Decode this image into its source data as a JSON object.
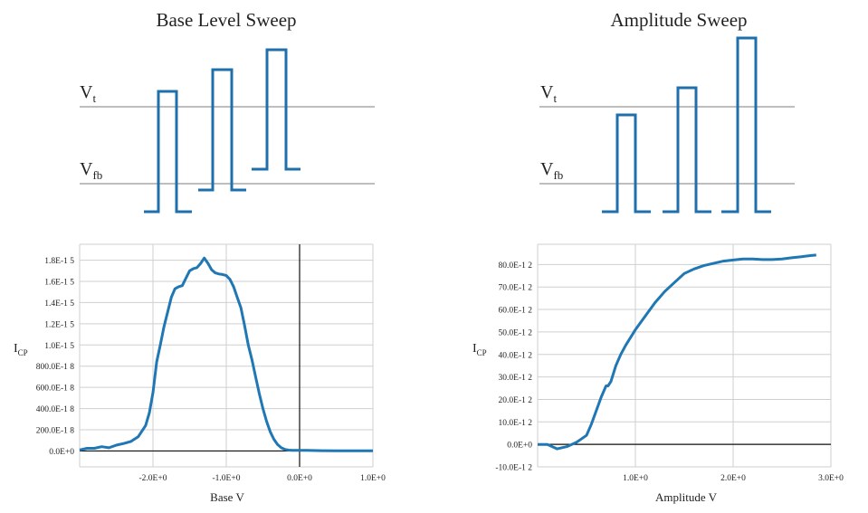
{
  "diagrams": [
    {
      "title": "Base Level Sweep",
      "vt_main": "V",
      "vt_sub": "t",
      "vfb_main": "V",
      "vfb_sub": "fb"
    },
    {
      "title": "Amplitude Sweep",
      "vt_main": "V",
      "vt_sub": "t",
      "vfb_main": "V",
      "vfb_sub": "fb"
    }
  ],
  "chart_data": [
    {
      "type": "line",
      "xlabel": "Base   V",
      "ylabel_main": "I",
      "ylabel_sub": "CP",
      "xlim": [
        -3.0,
        1.0
      ],
      "ylim": [
        -1.5e-16,
        1.95e-15
      ],
      "x_ticks": [
        -2.0,
        -1.0,
        0.0,
        1.0
      ],
      "x_tick_labels": [
        "-2.0E+0",
        "-1.0E+0",
        "0.0E+0",
        "1.0E+0"
      ],
      "y_ticks": [
        0,
        2e-16,
        4e-16,
        6e-16,
        8e-16,
        1e-15,
        1.2e-15,
        1.4e-15,
        1.6e-15,
        1.8e-15
      ],
      "y_tick_labels": [
        "0.0E+0",
        "200.0E-1 8",
        "400.0E-1 8",
        "600.0E-1 8",
        "800.0E-1 8",
        "1.0E-1 5",
        "1.2E-1 5",
        "1.4E-1 5",
        "1.6E-1 5",
        "1.8E-1 5"
      ],
      "grid": true,
      "series": [
        {
          "x": [
            -3.0,
            -2.9,
            -2.8,
            -2.7,
            -2.6,
            -2.5,
            -2.4,
            -2.3,
            -2.2,
            -2.1,
            -2.05,
            -2.0,
            -1.95,
            -1.9,
            -1.85,
            -1.8,
            -1.75,
            -1.7,
            -1.65,
            -1.6,
            -1.55,
            -1.5,
            -1.45,
            -1.4,
            -1.35,
            -1.3,
            -1.25,
            -1.2,
            -1.15,
            -1.1,
            -1.05,
            -1.0,
            -0.95,
            -0.9,
            -0.85,
            -0.8,
            -0.75,
            -0.7,
            -0.65,
            -0.6,
            -0.55,
            -0.5,
            -0.45,
            -0.4,
            -0.35,
            -0.3,
            -0.25,
            -0.2,
            -0.15,
            -0.1,
            -0.05,
            0.0,
            0.1,
            0.3,
            0.5,
            1.0
          ],
          "values": [
            1e-17,
            2.5e-17,
            2.5e-17,
            4e-17,
            3e-17,
            5.5e-17,
            7e-17,
            9e-17,
            1.35e-16,
            2.4e-16,
            3.6e-16,
            5.5e-16,
            8.4e-16,
            1e-15,
            1.17e-15,
            1.31e-15,
            1.45e-15,
            1.53e-15,
            1.55e-15,
            1.56e-15,
            1.63e-15,
            1.7e-15,
            1.72e-15,
            1.73e-15,
            1.77e-15,
            1.82e-15,
            1.77e-15,
            1.71e-15,
            1.68e-15,
            1.67e-15,
            1.665e-15,
            1.655e-15,
            1.62e-15,
            1.55e-15,
            1.45e-15,
            1.35e-15,
            1.18e-15,
            1e-15,
            8.6e-16,
            7e-16,
            5.4e-16,
            4e-16,
            2.8e-16,
            1.8e-16,
            1.1e-16,
            6e-17,
            3e-17,
            1.5e-17,
            8e-18,
            5e-18,
            5e-18,
            5e-18,
            5e-18,
            3e-18,
            2e-18,
            2e-18
          ]
        }
      ]
    },
    {
      "type": "line",
      "xlabel": "Amplitude   V",
      "ylabel_main": "I",
      "ylabel_sub": "CP",
      "xlim": [
        0.0,
        3.0
      ],
      "ylim": [
        -1e-11,
        8.9e-11
      ],
      "x_ticks": [
        1.0,
        2.0,
        3.0
      ],
      "x_tick_labels": [
        "1.0E+0",
        "2.0E+0",
        "3.0E+0"
      ],
      "y_ticks": [
        -1e-11,
        0,
        1e-11,
        2e-11,
        3e-11,
        4e-11,
        5e-11,
        6e-11,
        7e-11,
        8e-11
      ],
      "y_tick_labels": [
        "-10.0E-1 2",
        "0.0E+0",
        "10.0E-1 2",
        "20.0E-1 2",
        "30.0E-1 2",
        "40.0E-1 2",
        "50.0E-1 2",
        "60.0E-1 2",
        "70.0E-1 2",
        "80.0E-1 2"
      ],
      "grid": true,
      "series": [
        {
          "x": [
            0.0,
            0.1,
            0.2,
            0.3,
            0.4,
            0.5,
            0.55,
            0.6,
            0.65,
            0.7,
            0.72,
            0.75,
            0.8,
            0.85,
            0.9,
            1.0,
            1.1,
            1.2,
            1.3,
            1.4,
            1.5,
            1.55,
            1.6,
            1.7,
            1.8,
            1.9,
            2.0,
            2.1,
            2.2,
            2.3,
            2.4,
            2.5,
            2.6,
            2.7,
            2.8,
            2.85
          ],
          "values": [
            0,
            0,
            -2e-12,
            -1e-12,
            1e-12,
            4e-12,
            9e-12,
            1.5e-11,
            2.1e-11,
            2.6e-11,
            2.6e-11,
            2.8e-11,
            3.5e-11,
            4e-11,
            4.4e-11,
            5.1e-11,
            5.7e-11,
            6.3e-11,
            6.8e-11,
            7.2e-11,
            7.6e-11,
            7.7e-11,
            7.8e-11,
            7.95e-11,
            8.05e-11,
            8.15e-11,
            8.2e-11,
            8.25e-11,
            8.25e-11,
            8.22e-11,
            8.22e-11,
            8.25e-11,
            8.3e-11,
            8.35e-11,
            8.4e-11,
            8.42e-11
          ]
        }
      ]
    }
  ]
}
